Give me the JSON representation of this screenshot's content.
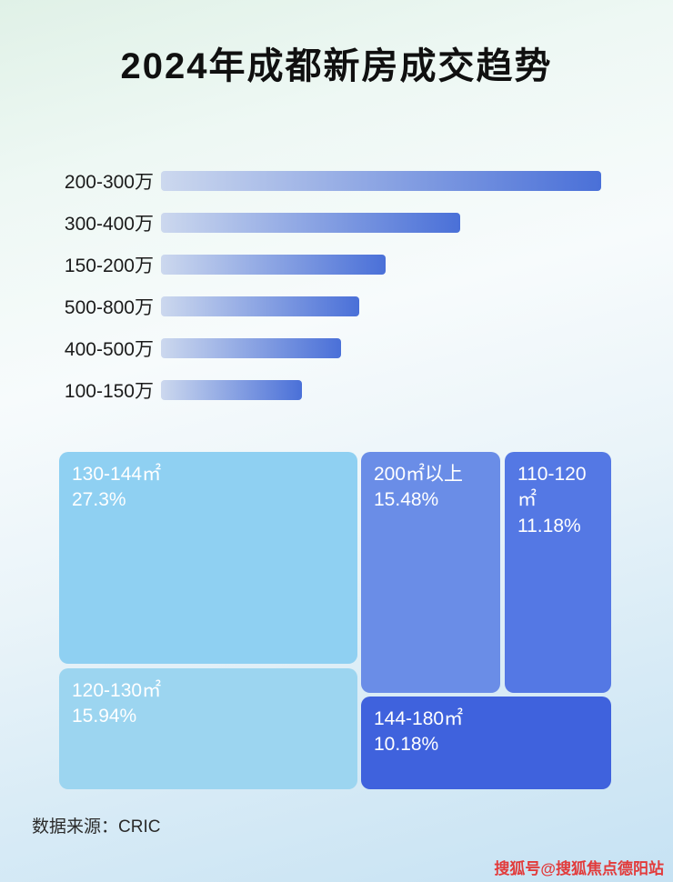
{
  "title": "2024年成都新房成交趋势",
  "footer": {
    "source_label": "数据来源：CRIC"
  },
  "watermark": {
    "text": "搜狐号@搜狐焦点德阳站",
    "color": "#e23b3b"
  },
  "colors": {
    "bar_gradient_start": "#ccd8ee",
    "bar_gradient_end": "#4a70d8",
    "label_color": "#1b1b1b"
  },
  "chart_data": [
    {
      "type": "bar",
      "orientation": "horizontal",
      "title": "2024年成都新房成交趋势",
      "categories": [
        "200-300万",
        "300-400万",
        "150-200万",
        "500-800万",
        "400-500万",
        "100-150万"
      ],
      "values": [
        100,
        68,
        51,
        45,
        41,
        32
      ],
      "value_axis": "unlabeled (bar lengths relative to longest bar, %)",
      "grid": false,
      "legend": false
    },
    {
      "type": "treemap",
      "items": [
        {
          "label": "130-144㎡",
          "value": 27.3,
          "value_label": "27.3%",
          "color": "#8fd0f2"
        },
        {
          "label": "120-130㎡",
          "value": 15.94,
          "value_label": "15.94%",
          "color": "#9cd5f0"
        },
        {
          "label": "200㎡以上",
          "value": 15.48,
          "value_label": "15.48%",
          "color": "#6a8de7"
        },
        {
          "label": "110-120㎡",
          "value": 11.18,
          "value_label": "11.18%",
          "color": "#5478e4"
        },
        {
          "label": "144-180㎡",
          "value": 10.18,
          "value_label": "10.18%",
          "color": "#3f62dd"
        }
      ]
    }
  ]
}
